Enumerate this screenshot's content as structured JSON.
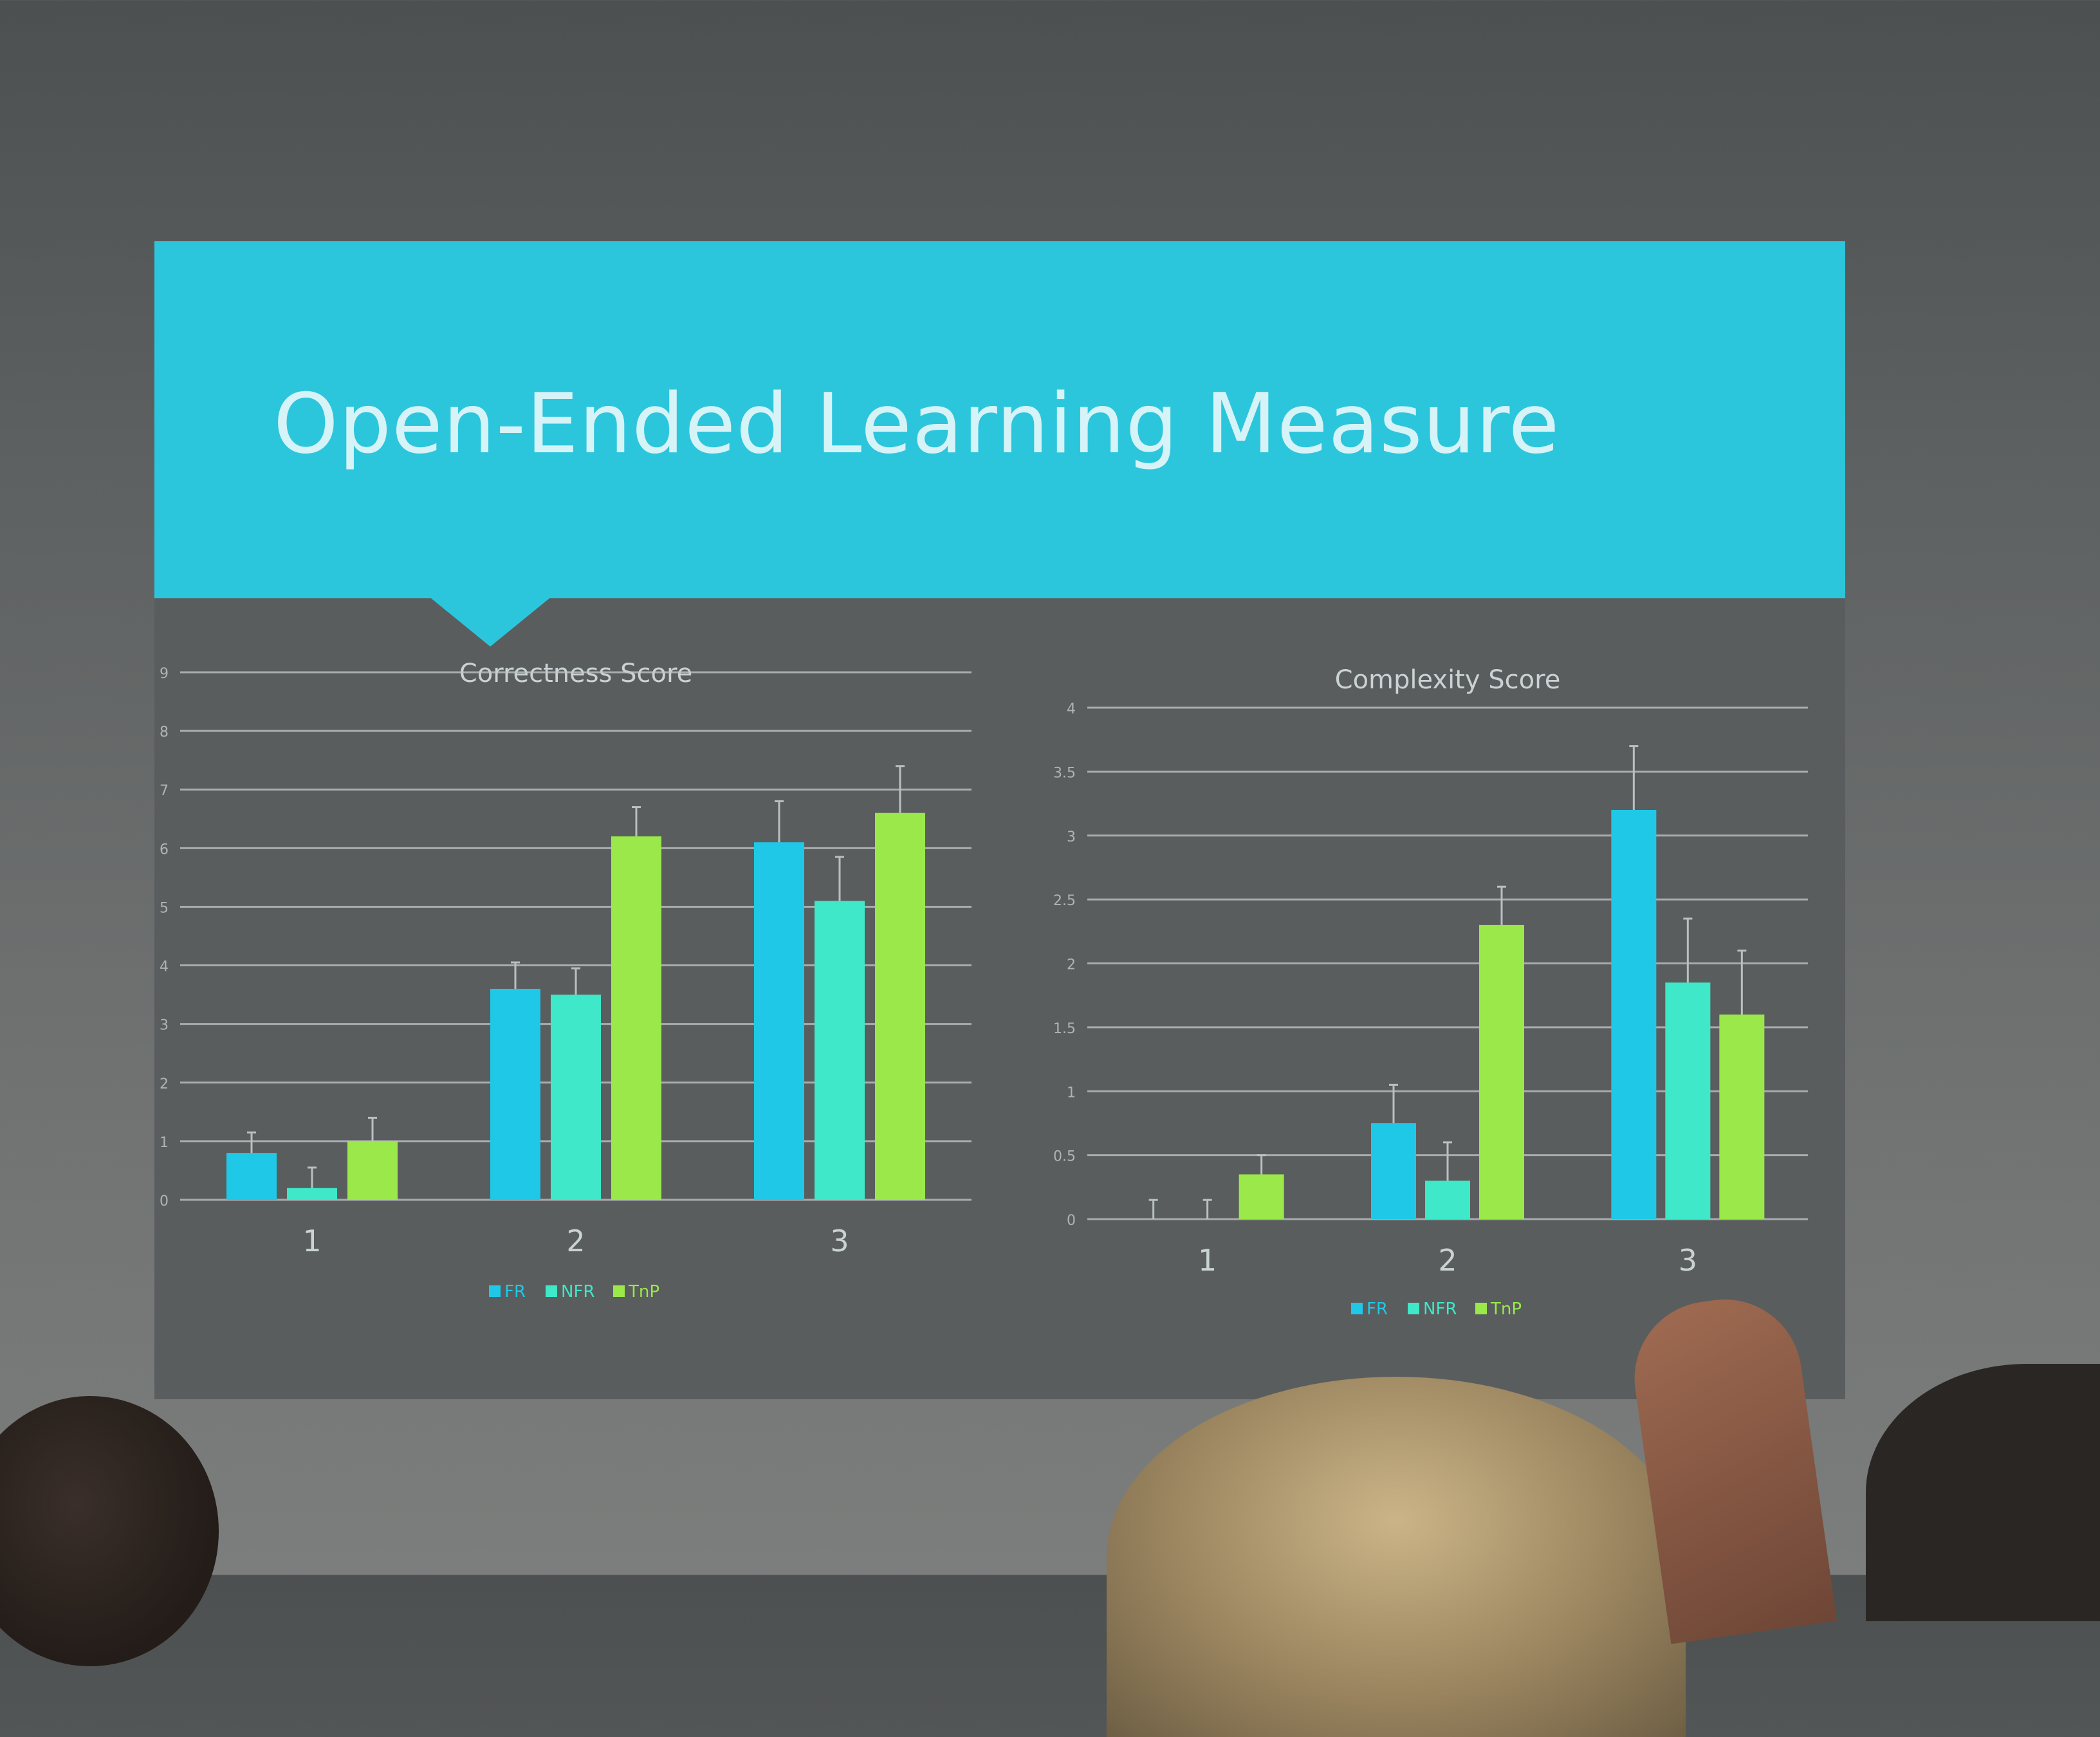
{
  "slide": {
    "title": "Open-Ended Learning Measure",
    "colors": {
      "banner": "#2cc6dc",
      "background": "#5a5d5e"
    }
  },
  "chart_data": [
    {
      "type": "bar",
      "title": "Correctness Score",
      "categories": [
        "1",
        "2",
        "3"
      ],
      "series": [
        {
          "name": "FR",
          "color": "#1fc8e6",
          "values": [
            0.8,
            3.6,
            6.1
          ],
          "errors": [
            0.35,
            0.45,
            0.7
          ]
        },
        {
          "name": "NFR",
          "color": "#3ee8c8",
          "values": [
            0.2,
            3.5,
            5.1
          ],
          "errors": [
            0.35,
            0.45,
            0.75
          ]
        },
        {
          "name": "TnP",
          "color": "#9ae84a",
          "values": [
            1.0,
            6.2,
            6.6
          ],
          "errors": [
            0.4,
            0.5,
            0.8
          ]
        }
      ],
      "ylim": [
        0,
        9
      ],
      "yticks": [
        "0",
        "1",
        "2",
        "3",
        "4",
        "5",
        "6",
        "7",
        "8",
        "9"
      ],
      "grid": true,
      "legend": "bottom"
    },
    {
      "type": "bar",
      "title": "Complexity Score",
      "categories": [
        "1",
        "2",
        "3"
      ],
      "series": [
        {
          "name": "FR",
          "color": "#1fc8e6",
          "values": [
            0,
            0.75,
            3.2
          ],
          "errors": [
            0.15,
            0.3,
            0.5
          ]
        },
        {
          "name": "NFR",
          "color": "#3ee8c8",
          "values": [
            0,
            0.3,
            1.85
          ],
          "errors": [
            0.15,
            0.3,
            0.5
          ]
        },
        {
          "name": "TnP",
          "color": "#9ae84a",
          "values": [
            0.35,
            2.3,
            1.6
          ],
          "errors": [
            0.15,
            0.3,
            0.5
          ]
        }
      ],
      "ylim": [
        0,
        4
      ],
      "yticks": [
        "0",
        "0.5",
        "1",
        "1.5",
        "2",
        "2.5",
        "3",
        "3.5",
        "4"
      ],
      "grid": true,
      "legend": "bottom"
    }
  ]
}
